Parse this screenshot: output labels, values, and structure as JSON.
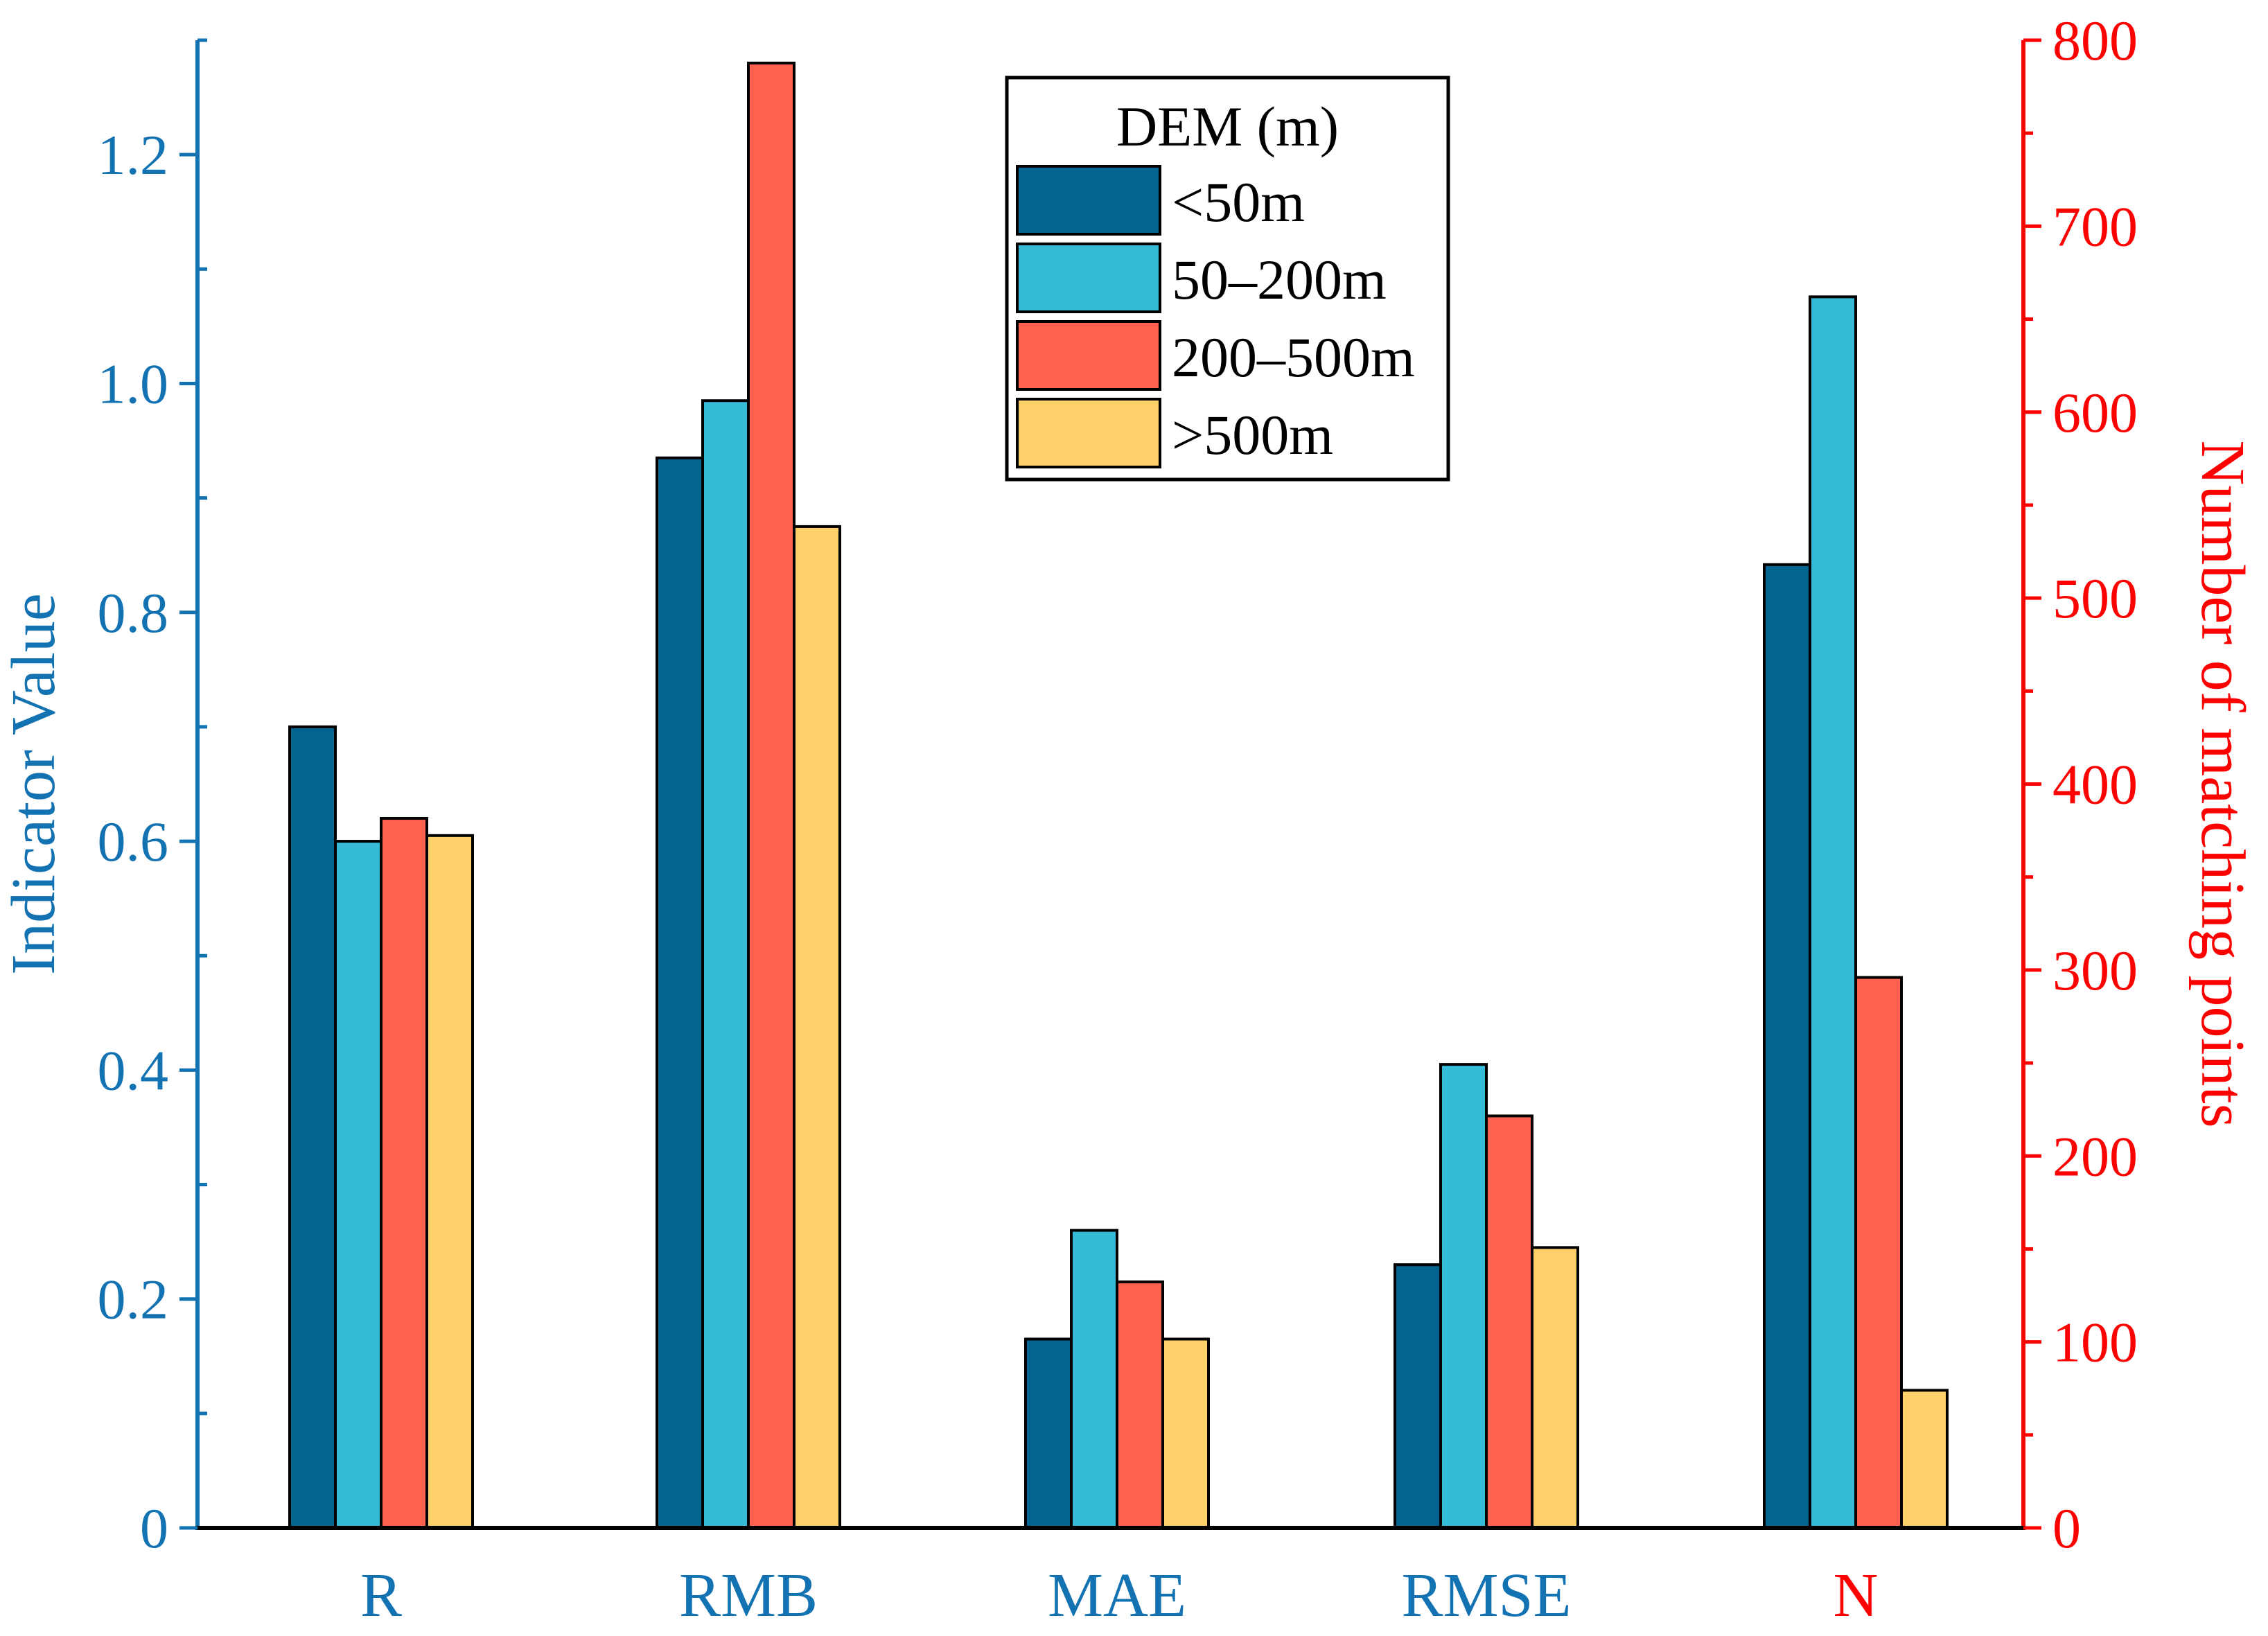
{
  "chart_data": {
    "type": "bar",
    "categories": [
      "R",
      "RMB",
      "MAE",
      "RMSE",
      "N"
    ],
    "category_axis": [
      "left",
      "left",
      "left",
      "left",
      "right"
    ],
    "legend": {
      "title": "DEM (m)",
      "position": "top-center"
    },
    "series": [
      {
        "name": "<50m",
        "color": "#02648F",
        "values": [
          0.7,
          0.935,
          0.165,
          0.23,
          518
        ]
      },
      {
        "name": "50–200m",
        "color": "#35BBD8",
        "values": [
          0.6,
          0.985,
          0.26,
          0.405,
          662
        ]
      },
      {
        "name": "200–500m",
        "color": "#FE6150",
        "values": [
          0.62,
          1.28,
          0.215,
          0.36,
          296
        ]
      },
      {
        "name": ">500m",
        "color": "#FED06A",
        "values": [
          0.605,
          0.875,
          0.165,
          0.245,
          74
        ]
      }
    ],
    "y_left": {
      "label": "Indicator Value",
      "range": [
        0,
        1.3
      ],
      "ticks": [
        "0",
        "0.2",
        "0.4",
        "0.6",
        "0.8",
        "1.0",
        "1.2"
      ],
      "color": "#1372B2"
    },
    "y_right": {
      "label": "Number of matching points",
      "range": [
        0,
        800
      ],
      "ticks": [
        "0",
        "100",
        "200",
        "300",
        "400",
        "500",
        "600",
        "700",
        "800"
      ],
      "color": "#FF0000"
    },
    "grid": false
  }
}
